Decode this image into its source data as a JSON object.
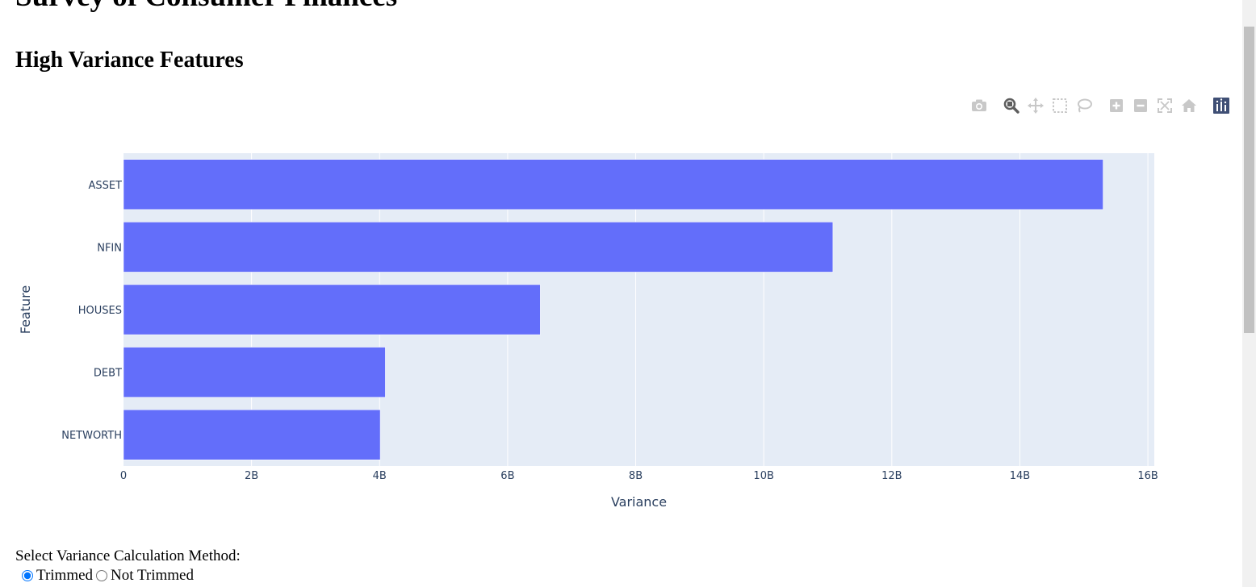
{
  "page": {
    "title": "Survey of Consumer Finances",
    "chart_heading": "High Variance Features"
  },
  "modebar": [
    {
      "name": "download-plot-icon",
      "icon": "camera",
      "active": false
    },
    {
      "name": "zoom-icon",
      "icon": "magnifier",
      "active": true
    },
    {
      "name": "pan-icon",
      "icon": "move-arrows",
      "active": false
    },
    {
      "name": "box-select-icon",
      "icon": "dashed-square",
      "active": false
    },
    {
      "name": "lasso-select-icon",
      "icon": "lasso",
      "active": false
    },
    {
      "name": "zoom-in-icon",
      "icon": "plus-square",
      "active": false
    },
    {
      "name": "zoom-out-icon",
      "icon": "minus-square",
      "active": false
    },
    {
      "name": "autoscale-icon",
      "icon": "expand-corners",
      "active": false
    },
    {
      "name": "reset-axes-icon",
      "icon": "home",
      "active": false
    },
    {
      "name": "plotly-logo-icon",
      "icon": "plotly-logo",
      "active": false
    }
  ],
  "chart_data": {
    "type": "bar",
    "orientation": "horizontal",
    "categories": [
      "NETWORTH",
      "DEBT",
      "HOUSES",
      "NFIN",
      "ASSET"
    ],
    "values": [
      4010000000,
      4090000000,
      6510000000,
      11080000000,
      15300000000
    ],
    "xlabel": "Variance",
    "ylabel": "Feature",
    "xlim": [
      0,
      16100000000
    ],
    "xticks": [
      {
        "value": 0,
        "label": "0"
      },
      {
        "value": 2000000000,
        "label": "2B"
      },
      {
        "value": 4000000000,
        "label": "4B"
      },
      {
        "value": 6000000000,
        "label": "6B"
      },
      {
        "value": 8000000000,
        "label": "8B"
      },
      {
        "value": 10000000000,
        "label": "10B"
      },
      {
        "value": 12000000000,
        "label": "12B"
      },
      {
        "value": 14000000000,
        "label": "14B"
      },
      {
        "value": 16000000000,
        "label": "16B"
      }
    ],
    "grid": true,
    "colors": {
      "bar": "#636efa",
      "plot_bg": "#e5ecf6",
      "grid": "#ffffff",
      "text": "#2a3f5f"
    }
  },
  "controls": {
    "label": "Select Variance Calculation Method:",
    "options": [
      {
        "label": "Trimmed",
        "checked": true
      },
      {
        "label": "Not Trimmed",
        "checked": false
      }
    ]
  }
}
